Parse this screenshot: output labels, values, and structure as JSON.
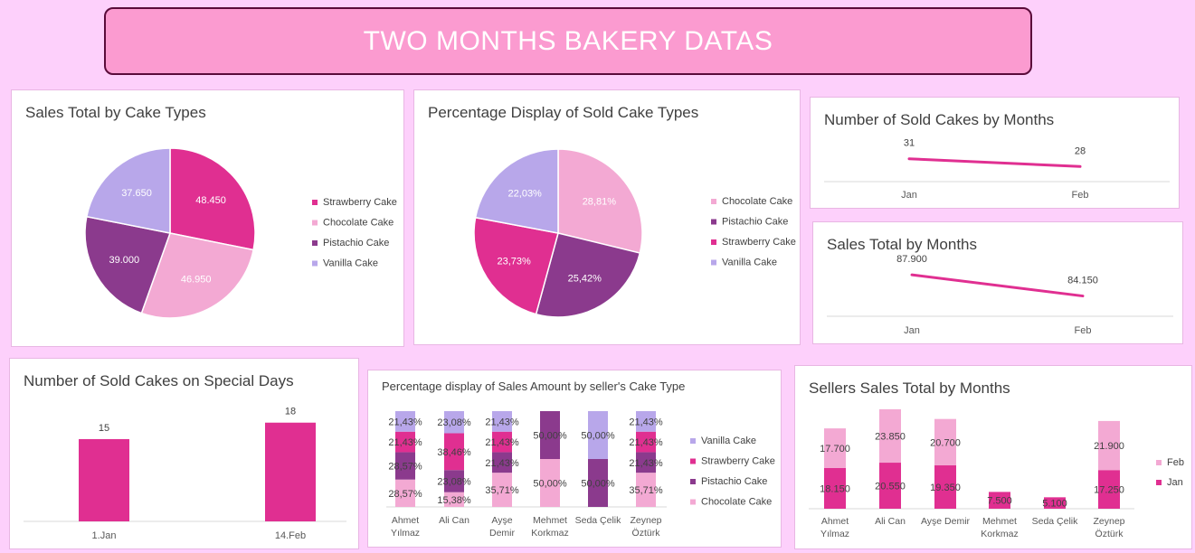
{
  "page_title": "TWO MONTHS BAKERY DATAS",
  "colors": {
    "strawberry": "#e02f91",
    "chocolate": "#f3a9d3",
    "pistachio": "#8b3a8d",
    "vanilla": "#b8a7ea",
    "jan": "#e02f91",
    "feb": "#f3a9d3"
  },
  "chart_data": [
    {
      "id": "sales_by_type",
      "type": "pie",
      "title": "Sales Total by Cake Types",
      "labels": [
        "Strawberry Cake",
        "Chocolate Cake",
        "Pistachio Cake",
        "Vanilla Cake"
      ],
      "values": [
        48450,
        46950,
        39000,
        37650
      ],
      "data_labels": [
        "48.450",
        "46.950",
        "39.000",
        "37.650"
      ],
      "legend": [
        "Strawberry Cake",
        "Chocolate Cake",
        "Pistachio Cake",
        "Vanilla Cake"
      ],
      "legend_position": "right"
    },
    {
      "id": "pct_sold_types",
      "type": "pie",
      "title": "Percentage Display of Sold Cake Types",
      "labels": [
        "Chocolate Cake",
        "Pistachio Cake",
        "Strawberry Cake",
        "Vanilla Cake"
      ],
      "values": [
        28.81,
        25.42,
        23.73,
        22.03
      ],
      "data_labels": [
        "28,81%",
        "25,42%",
        "23,73%",
        "22,03%"
      ],
      "legend": [
        "Chocolate Cake",
        "Pistachio Cake",
        "Strawberry Cake",
        "Vanilla Cake"
      ],
      "legend_position": "right"
    },
    {
      "id": "sold_by_months",
      "type": "line",
      "title": "Number of Sold Cakes by Months",
      "categories": [
        "Jan",
        "Feb"
      ],
      "values": [
        31,
        28
      ],
      "data_labels": [
        "31",
        "28"
      ]
    },
    {
      "id": "sales_by_months",
      "type": "line",
      "title": "Sales Total by Months",
      "categories": [
        "Jan",
        "Feb"
      ],
      "values": [
        87900,
        84150
      ],
      "data_labels": [
        "87.900",
        "84.150"
      ]
    },
    {
      "id": "special_days",
      "type": "bar",
      "title": "Number of Sold Cakes on Special Days",
      "categories": [
        "1.Jan",
        "14.Feb"
      ],
      "values": [
        15,
        18
      ],
      "data_labels": [
        "15",
        "18"
      ]
    },
    {
      "id": "pct_seller_type",
      "type": "bar",
      "stacked": true,
      "title": "Percentage display of Sales Amount by seller's Cake Type",
      "categories": [
        [
          "Ahmet",
          "Yılmaz"
        ],
        [
          "Ali Can"
        ],
        [
          "Ayşe",
          "Demir"
        ],
        [
          "Mehmet",
          "Korkmaz"
        ],
        [
          "Seda Çelik"
        ],
        [
          "Zeynep",
          "Öztürk"
        ]
      ],
      "series": [
        {
          "name": "Chocolate Cake",
          "values": [
            28.57,
            15.38,
            35.71,
            50.0,
            0,
            35.71
          ],
          "labels": [
            "28,57%",
            "15,38%",
            "35,71%",
            "50,00%",
            "",
            "35,71%"
          ]
        },
        {
          "name": "Pistachio Cake",
          "values": [
            28.57,
            23.08,
            21.43,
            50.0,
            50.0,
            21.43
          ],
          "labels": [
            "28,57%",
            "23,08%",
            "21,43%",
            "50,00%",
            "50,00%",
            "21,43%"
          ]
        },
        {
          "name": "Strawberry Cake",
          "values": [
            21.43,
            38.46,
            21.43,
            0,
            0,
            21.43
          ],
          "labels": [
            "21,43%",
            "38,46%",
            "21,43%",
            "",
            "",
            "21,43%"
          ]
        },
        {
          "name": "Vanilla Cake",
          "values": [
            21.43,
            23.08,
            21.43,
            0,
            50.0,
            21.43
          ],
          "labels": [
            "21,43%",
            "23,08%",
            "21,43%",
            "",
            "50,00%",
            "21,43%"
          ]
        }
      ],
      "legend": [
        "Vanilla Cake",
        "Strawberry Cake",
        "Pistachio Cake",
        "Chocolate Cake"
      ],
      "legend_position": "right"
    },
    {
      "id": "seller_months",
      "type": "bar",
      "stacked": true,
      "title": "Sellers Sales Total by Months",
      "categories": [
        [
          "Ahmet",
          "Yılmaz"
        ],
        [
          "Ali Can"
        ],
        [
          "Ayşe Demir"
        ],
        [
          "Mehmet",
          "Korkmaz"
        ],
        [
          "Seda Çelik"
        ],
        [
          "Zeynep",
          "Öztürk"
        ]
      ],
      "series": [
        {
          "name": "Jan",
          "values": [
            18150,
            20550,
            19350,
            7500,
            5100,
            17250
          ],
          "labels": [
            "18.150",
            "20.550",
            "19.350",
            "7.500",
            "5.100",
            "17.250"
          ]
        },
        {
          "name": "Feb",
          "values": [
            17700,
            23850,
            20700,
            0,
            0,
            21900
          ],
          "labels": [
            "17.700",
            "23.850",
            "20.700",
            "",
            "",
            "21.900"
          ]
        }
      ],
      "legend": [
        "Feb",
        "Jan"
      ],
      "legend_position": "right"
    }
  ]
}
